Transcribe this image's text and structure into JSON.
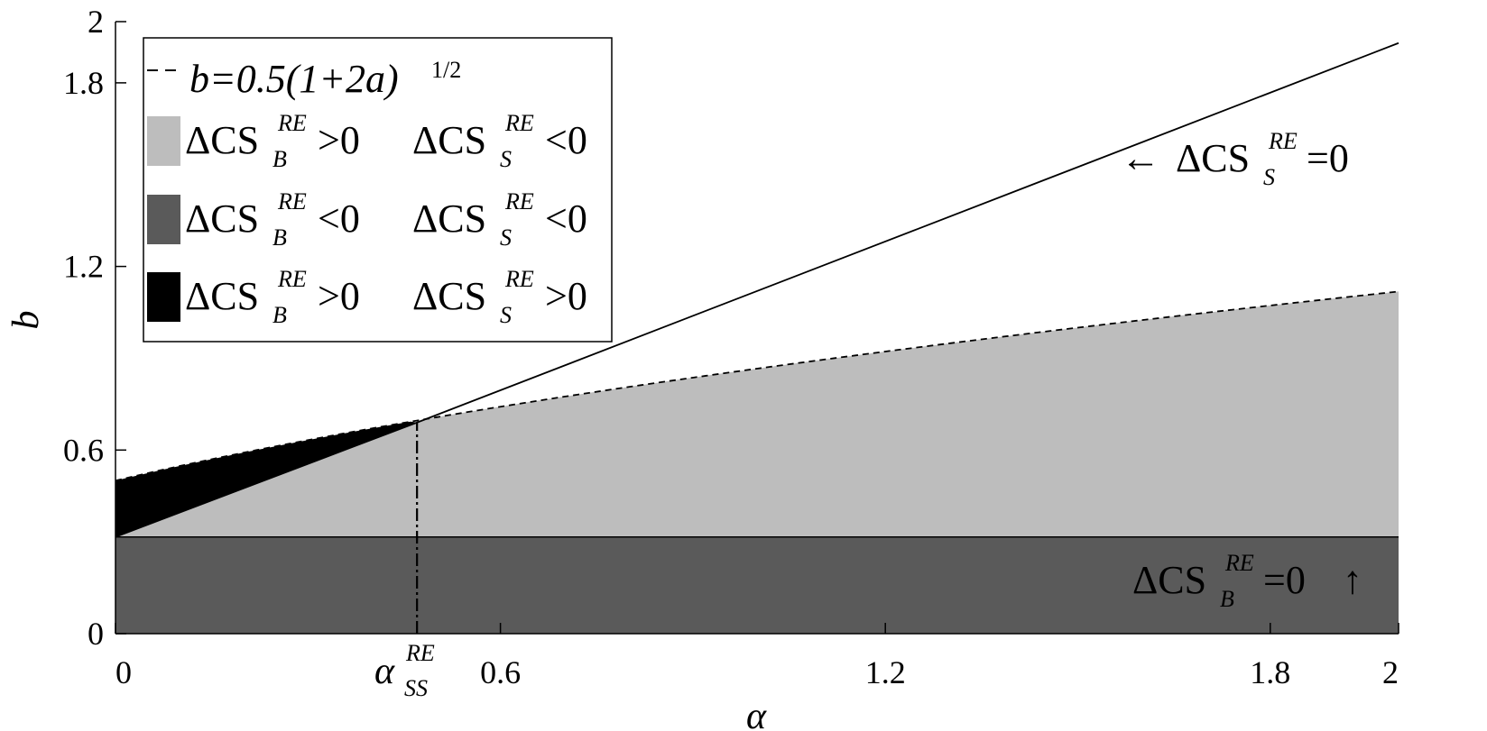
{
  "chart_data": {
    "type": "area",
    "title": "",
    "xlabel": "α",
    "ylabel": "b",
    "xlim": [
      0,
      2
    ],
    "ylim": [
      0,
      2
    ],
    "x_ticks": [
      "0",
      "0.6",
      "1.2",
      "1.8",
      "2"
    ],
    "x_tick_values": [
      0,
      0.6,
      1.2,
      1.8,
      2
    ],
    "y_ticks": [
      "0",
      "0.6",
      "1.2",
      "1.8",
      "2"
    ],
    "y_tick_values": [
      0,
      0.6,
      1.2,
      1.8,
      2
    ],
    "special_x_tick": {
      "base": "α",
      "sub": "SS",
      "sup": "RE",
      "value": 0.47
    },
    "grid": false,
    "legend_position": "top-left",
    "curves": {
      "dashed_boundary": {
        "label": "b=0.5(1+2a)",
        "label_sup": "1/2",
        "formula": "0.5*sqrt(1+2a)"
      },
      "solid_line_CS_S_zero": {
        "x": [
          0,
          0.47,
          2
        ],
        "y": [
          0.316,
          0.69,
          1.93
        ]
      },
      "horizontal_CS_B_zero": {
        "y": 0.316
      }
    },
    "regions": [
      {
        "name": "light-gray",
        "color": "#bdbdbd",
        "desc": [
          "ΔCS",
          "B",
          "RE",
          ">0",
          "ΔCS",
          "S",
          "RE",
          "<0"
        ]
      },
      {
        "name": "dark-gray",
        "color": "#5a5a5a",
        "desc": [
          "ΔCS",
          "B",
          "RE",
          "<0",
          "ΔCS",
          "S",
          "RE",
          "<0"
        ]
      },
      {
        "name": "black",
        "color": "#000000",
        "desc": [
          "ΔCS",
          "B",
          "RE",
          ">0",
          "ΔCS",
          "S",
          "RE",
          ">0"
        ]
      }
    ],
    "annotations": [
      {
        "arrow": "←",
        "text": "ΔCS",
        "sub": "S",
        "sup": "RE",
        "rest": "=0"
      },
      {
        "arrow": "↑",
        "text": "ΔCS",
        "sub": "B",
        "sup": "RE",
        "rest": "=0"
      }
    ]
  }
}
